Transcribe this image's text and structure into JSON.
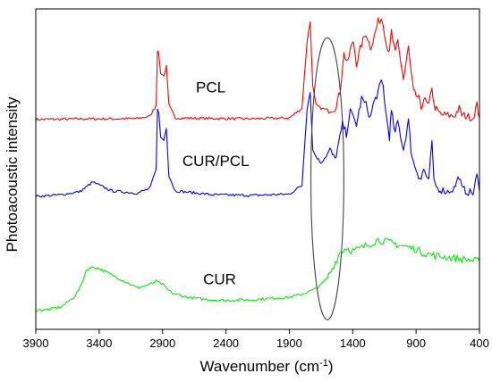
{
  "chart_data": {
    "type": "line",
    "xlabel_main": "Wavenumber (cm",
    "xlabel_sup": "-1",
    "xlabel_tail": ")",
    "ylabel": "Photoacoustic intensity",
    "xlim": [
      3900,
      400
    ],
    "x_reversed": true,
    "xticks": [
      3900,
      3400,
      2900,
      2400,
      1900,
      1400,
      900,
      400
    ],
    "y_ticks_shown": false,
    "grid": false,
    "series": [
      {
        "name": "PCL",
        "color": "#ff0000",
        "points": [
          [
            3900,
            0.655
          ],
          [
            3700,
            0.656
          ],
          [
            3500,
            0.657
          ],
          [
            3300,
            0.657
          ],
          [
            3100,
            0.658
          ],
          [
            3000,
            0.665
          ],
          [
            2950,
            0.7
          ],
          [
            2940,
            0.87
          ],
          [
            2930,
            0.86
          ],
          [
            2915,
            0.8
          ],
          [
            2890,
            0.79
          ],
          [
            2870,
            0.82
          ],
          [
            2850,
            0.7
          ],
          [
            2800,
            0.66
          ],
          [
            2500,
            0.658
          ],
          [
            2200,
            0.657
          ],
          [
            1900,
            0.66
          ],
          [
            1800,
            0.69
          ],
          [
            1760,
            0.9
          ],
          [
            1735,
            0.96
          ],
          [
            1715,
            0.76
          ],
          [
            1690,
            0.7
          ],
          [
            1650,
            0.69
          ],
          [
            1600,
            0.685
          ],
          [
            1540,
            0.69
          ],
          [
            1500,
            0.74
          ],
          [
            1470,
            0.86
          ],
          [
            1440,
            0.83
          ],
          [
            1420,
            0.87
          ],
          [
            1395,
            0.9
          ],
          [
            1370,
            0.83
          ],
          [
            1330,
            0.89
          ],
          [
            1295,
            0.925
          ],
          [
            1260,
            0.88
          ],
          [
            1240,
            0.9
          ],
          [
            1200,
            0.96
          ],
          [
            1175,
            0.97
          ],
          [
            1160,
            0.96
          ],
          [
            1140,
            0.9
          ],
          [
            1110,
            0.86
          ],
          [
            1095,
            0.93
          ],
          [
            1065,
            0.86
          ],
          [
            1045,
            0.9
          ],
          [
            1000,
            0.78
          ],
          [
            960,
            0.88
          ],
          [
            940,
            0.8
          ],
          [
            920,
            0.74
          ],
          [
            880,
            0.72
          ],
          [
            860,
            0.69
          ],
          [
            840,
            0.72
          ],
          [
            800,
            0.695
          ],
          [
            775,
            0.76
          ],
          [
            760,
            0.7
          ],
          [
            730,
            0.68
          ],
          [
            700,
            0.67
          ],
          [
            650,
            0.668
          ],
          [
            600,
            0.665
          ],
          [
            560,
            0.69
          ],
          [
            540,
            0.67
          ],
          [
            500,
            0.665
          ],
          [
            450,
            0.66
          ],
          [
            420,
            0.7
          ],
          [
            400,
            0.66
          ]
        ]
      },
      {
        "name": "CUR/PCL",
        "color": "#0000ff",
        "points": [
          [
            3900,
            0.415
          ],
          [
            3700,
            0.42
          ],
          [
            3550,
            0.43
          ],
          [
            3450,
            0.46
          ],
          [
            3400,
            0.45
          ],
          [
            3300,
            0.432
          ],
          [
            3100,
            0.425
          ],
          [
            3000,
            0.44
          ],
          [
            2950,
            0.5
          ],
          [
            2940,
            0.69
          ],
          [
            2930,
            0.675
          ],
          [
            2915,
            0.6
          ],
          [
            2890,
            0.59
          ],
          [
            2870,
            0.63
          ],
          [
            2850,
            0.48
          ],
          [
            2800,
            0.432
          ],
          [
            2500,
            0.42
          ],
          [
            2200,
            0.418
          ],
          [
            1900,
            0.422
          ],
          [
            1800,
            0.45
          ],
          [
            1760,
            0.69
          ],
          [
            1735,
            0.74
          ],
          [
            1715,
            0.56
          ],
          [
            1690,
            0.54
          ],
          [
            1650,
            0.52
          ],
          [
            1610,
            0.54
          ],
          [
            1580,
            0.56
          ],
          [
            1540,
            0.53
          ],
          [
            1510,
            0.58
          ],
          [
            1480,
            0.64
          ],
          [
            1450,
            0.61
          ],
          [
            1420,
            0.68
          ],
          [
            1395,
            0.66
          ],
          [
            1370,
            0.64
          ],
          [
            1330,
            0.72
          ],
          [
            1295,
            0.7
          ],
          [
            1260,
            0.66
          ],
          [
            1240,
            0.7
          ],
          [
            1200,
            0.74
          ],
          [
            1175,
            0.77
          ],
          [
            1160,
            0.76
          ],
          [
            1140,
            0.68
          ],
          [
            1110,
            0.6
          ],
          [
            1095,
            0.68
          ],
          [
            1065,
            0.61
          ],
          [
            1045,
            0.65
          ],
          [
            1000,
            0.56
          ],
          [
            960,
            0.65
          ],
          [
            940,
            0.56
          ],
          [
            920,
            0.52
          ],
          [
            880,
            0.48
          ],
          [
            860,
            0.47
          ],
          [
            840,
            0.5
          ],
          [
            800,
            0.46
          ],
          [
            775,
            0.59
          ],
          [
            760,
            0.46
          ],
          [
            730,
            0.44
          ],
          [
            700,
            0.435
          ],
          [
            650,
            0.43
          ],
          [
            600,
            0.44
          ],
          [
            560,
            0.48
          ],
          [
            540,
            0.44
          ],
          [
            500,
            0.43
          ],
          [
            450,
            0.425
          ],
          [
            420,
            0.48
          ],
          [
            400,
            0.43
          ]
        ]
      },
      {
        "name": "CUR",
        "color": "#00ee00",
        "points": [
          [
            3900,
            0.06
          ],
          [
            3800,
            0.062
          ],
          [
            3700,
            0.07
          ],
          [
            3600,
            0.1
          ],
          [
            3550,
            0.13
          ],
          [
            3500,
            0.185
          ],
          [
            3450,
            0.195
          ],
          [
            3400,
            0.19
          ],
          [
            3300,
            0.17
          ],
          [
            3200,
            0.15
          ],
          [
            3100,
            0.13
          ],
          [
            3050,
            0.135
          ],
          [
            3000,
            0.14
          ],
          [
            2950,
            0.15
          ],
          [
            2900,
            0.14
          ],
          [
            2850,
            0.12
          ],
          [
            2800,
            0.11
          ],
          [
            2700,
            0.1
          ],
          [
            2600,
            0.095
          ],
          [
            2500,
            0.092
          ],
          [
            2400,
            0.09
          ],
          [
            2300,
            0.092
          ],
          [
            2200,
            0.092
          ],
          [
            2100,
            0.095
          ],
          [
            2000,
            0.098
          ],
          [
            1900,
            0.1
          ],
          [
            1800,
            0.11
          ],
          [
            1700,
            0.125
          ],
          [
            1650,
            0.14
          ],
          [
            1600,
            0.16
          ],
          [
            1550,
            0.2
          ],
          [
            1500,
            0.24
          ],
          [
            1450,
            0.255
          ],
          [
            1400,
            0.245
          ],
          [
            1350,
            0.25
          ],
          [
            1300,
            0.26
          ],
          [
            1250,
            0.27
          ],
          [
            1200,
            0.28
          ],
          [
            1150,
            0.275
          ],
          [
            1100,
            0.27
          ],
          [
            1050,
            0.265
          ],
          [
            1000,
            0.26
          ],
          [
            950,
            0.255
          ],
          [
            900,
            0.25
          ],
          [
            850,
            0.24
          ],
          [
            800,
            0.235
          ],
          [
            750,
            0.23
          ],
          [
            700,
            0.228
          ],
          [
            650,
            0.225
          ],
          [
            600,
            0.222
          ],
          [
            550,
            0.22
          ],
          [
            500,
            0.218
          ],
          [
            450,
            0.215
          ],
          [
            400,
            0.212
          ]
        ]
      }
    ],
    "series_labels": [
      {
        "text": "PCL",
        "x": 2520,
        "y": 0.74
      },
      {
        "text": "CUR/PCL",
        "x": 2480,
        "y": 0.51
      },
      {
        "text": "CUR",
        "x": 2450,
        "y": 0.14
      }
    ],
    "annotation": {
      "shape": "ellipse",
      "center_x": 1600,
      "center_y": 0.47,
      "radius_x": 130,
      "radius_y": 0.44,
      "stroke": "#444444"
    }
  }
}
